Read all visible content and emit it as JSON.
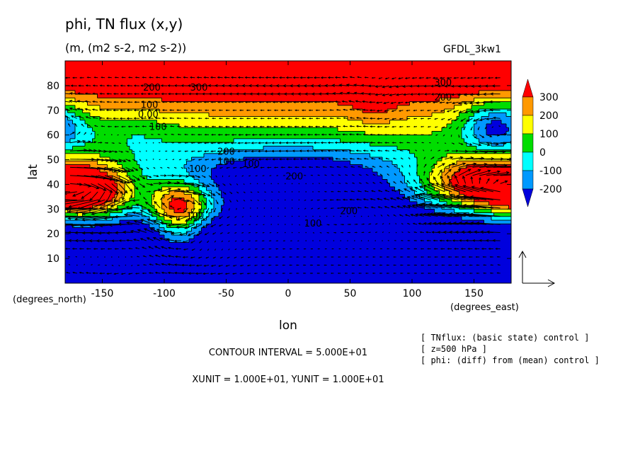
{
  "title": "phi, TN flux (x,y)",
  "subtitle": "(m, (m2 s-2, m2 s-2))",
  "model_label": "GFDL_3kw1",
  "x_unit_label": "(degrees_east)",
  "y_unit_label": "(degrees_north)",
  "contour_interval_text": "CONTOUR INTERVAL = 5.000E+01",
  "units_text": "XUNIT = 1.000E+01, YUNIT = 1.000E+01",
  "info_lines": [
    "[ TNflux: (basic state) control ]",
    "[ z=500 hPa ]",
    "[ phi: (diff) from (mean) control ]"
  ],
  "chart_data": {
    "type": "heatmap",
    "title": "phi, TN flux (x,y)",
    "xlabel": "lon",
    "ylabel": "lat",
    "xlim": [
      -180,
      180
    ],
    "ylim": [
      0,
      90
    ],
    "x_ticks": [
      -150,
      -100,
      -50,
      0,
      50,
      100,
      150
    ],
    "y_ticks": [
      10,
      20,
      30,
      40,
      50,
      60,
      70,
      80
    ],
    "colorbar": {
      "levels": [
        -200,
        -100,
        0,
        100,
        200,
        300
      ],
      "labels": [
        "300",
        "200",
        "100",
        "0",
        "-100",
        "-200"
      ],
      "colors": [
        "#ff0000",
        "#ff9900",
        "#ffff00",
        "#00dd00",
        "#00ffff",
        "#0099ff",
        "#0000dd"
      ]
    },
    "contour_labels": [
      {
        "text": "300",
        "lon": -72,
        "lat": 78
      },
      {
        "text": "300",
        "lon": 125,
        "lat": 80
      },
      {
        "text": "200",
        "lon": -110,
        "lat": 78
      },
      {
        "text": "200",
        "lon": 125,
        "lat": 74
      },
      {
        "text": "100",
        "lon": -112,
        "lat": 71
      },
      {
        "text": "0.00",
        "lon": -113,
        "lat": 67
      },
      {
        "text": "100",
        "lon": -105,
        "lat": 62
      },
      {
        "text": "200",
        "lon": -50,
        "lat": 52
      },
      {
        "text": "100",
        "lon": -50,
        "lat": 48
      },
      {
        "text": "100",
        "lon": -30,
        "lat": 47
      },
      {
        "text": "200",
        "lon": 5,
        "lat": 42
      },
      {
        "text": "200",
        "lon": 49,
        "lat": 28
      },
      {
        "text": "100",
        "lon": 20,
        "lat": 23
      },
      {
        "text": "100",
        "lon": -73,
        "lat": 45
      },
      {
        "text": "100",
        "lon": -75,
        "lat": 26
      }
    ],
    "field_description_visible": "geopotential anomaly with TN flux vectors",
    "vector_reference": {
      "u": 10,
      "v": 10
    }
  }
}
